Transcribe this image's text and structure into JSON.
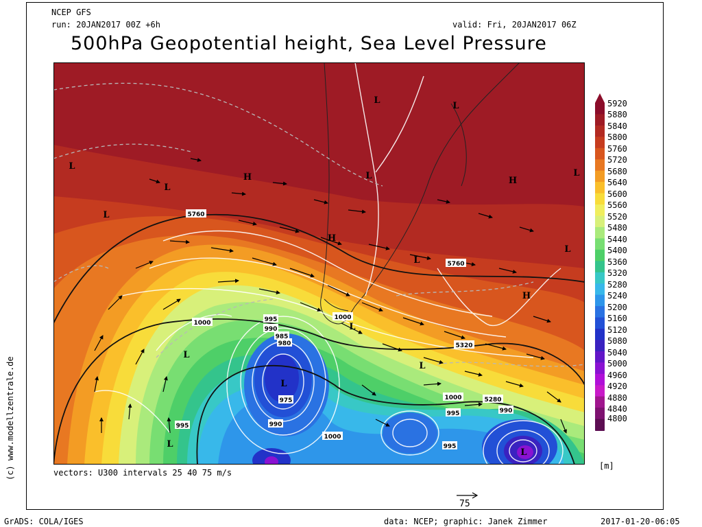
{
  "header": {
    "model": "NCEP GFS",
    "run": "run: 20JAN2017 00Z +6h",
    "valid": "valid: Fri, 20JAN2017 06Z",
    "title": "500hPa Geopotential height, Sea Level Pressure"
  },
  "side_credit": "(c) www.modellzentrale.de",
  "vectors_note": "vectors: U300 intervals 25 40 75 m/s",
  "vector_scale_label": "75",
  "unit": "[m]",
  "footer": {
    "left": "GrADS: COLA/IGES",
    "center": "data: NCEP; graphic: Janek Zimmer",
    "right": "2017-01-20-06:05"
  },
  "colorbar": {
    "levels": [
      "5920",
      "5880",
      "5840",
      "5800",
      "5760",
      "5720",
      "5680",
      "5640",
      "5600",
      "5560",
      "5520",
      "5480",
      "5440",
      "5400",
      "5360",
      "5320",
      "5280",
      "5240",
      "5200",
      "5160",
      "5120",
      "5080",
      "5040",
      "5000",
      "4960",
      "4920",
      "4880",
      "4840",
      "4800"
    ],
    "colors": [
      "#8b0d2a",
      "#9e1b25",
      "#b22a22",
      "#c63c1f",
      "#d8561e",
      "#e87822",
      "#f39c24",
      "#fabf2b",
      "#f8dc3a",
      "#f0ee5e",
      "#d8f07a",
      "#aaea7c",
      "#78de72",
      "#4ecf68",
      "#34c48c",
      "#38c8c6",
      "#38b8ea",
      "#2e96ea",
      "#2a72e2",
      "#2250d6",
      "#2232c8",
      "#3a22c0",
      "#6216c8",
      "#8a12d2",
      "#b010d8",
      "#c81ac8",
      "#a0168e",
      "#7e1270",
      "#5c0e52"
    ]
  },
  "map": {
    "pressure_centers": [
      {
        "label": "L"
      },
      {
        "label": "L"
      },
      {
        "label": "L"
      },
      {
        "label": "L"
      },
      {
        "label": "L"
      },
      {
        "label": "L"
      },
      {
        "label": "L"
      },
      {
        "label": "L"
      },
      {
        "label": "L"
      },
      {
        "label": "L"
      },
      {
        "label": "L"
      },
      {
        "label": "L"
      },
      {
        "label": "L"
      },
      {
        "label": "L"
      },
      {
        "label": "H"
      },
      {
        "label": "H"
      },
      {
        "label": "H"
      },
      {
        "label": "H"
      }
    ],
    "contour_labels": [
      "5760",
      "5760",
      "5320",
      "5280",
      "1000",
      "995",
      "990",
      "985",
      "980",
      "975",
      "990",
      "995",
      "1000",
      "1000",
      "995",
      "990",
      "995",
      "1000"
    ]
  }
}
